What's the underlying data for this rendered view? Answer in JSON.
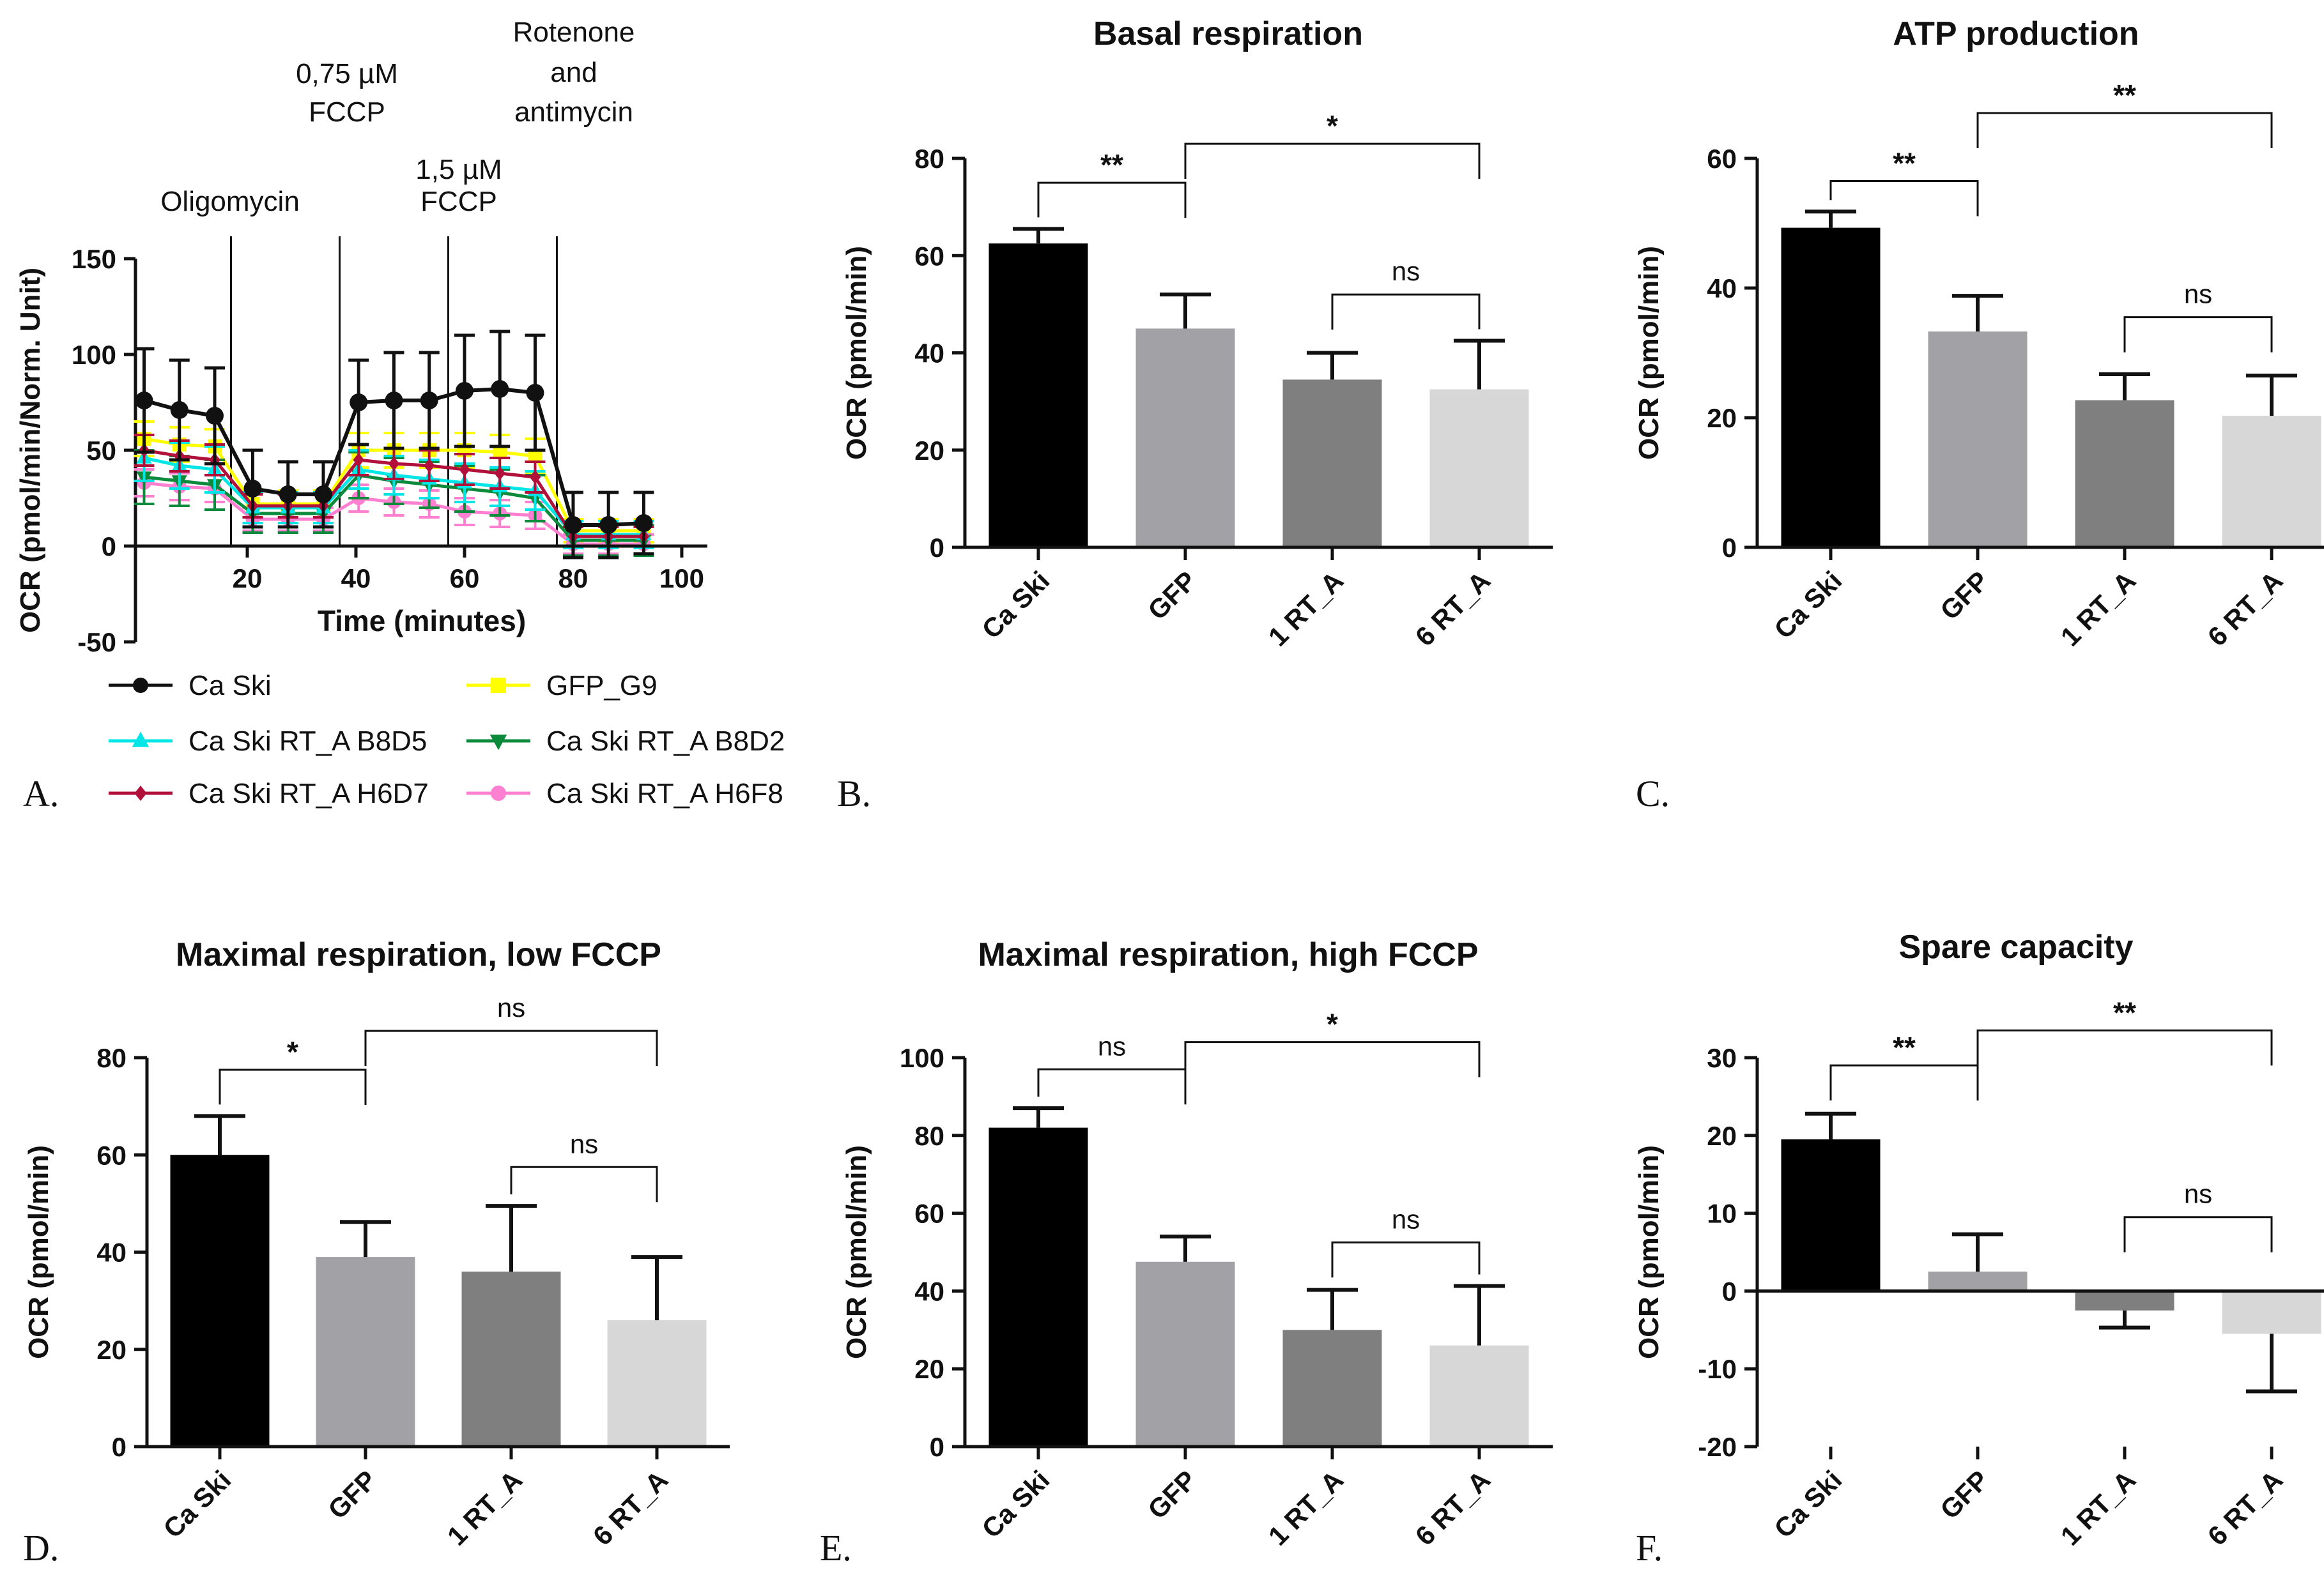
{
  "chart_data": [
    {
      "panel": "A.",
      "type": "line",
      "title": "",
      "xlabel": "Time (minutes)",
      "ylabel": "OCR (pmol/min/Norm. Unit)",
      "xlim": [
        0,
        100
      ],
      "ylim": [
        -50,
        150
      ],
      "xticks": [
        "20",
        "40",
        "60",
        "80",
        "100"
      ],
      "yticks": [
        "-50",
        "0",
        "50",
        "100",
        "150"
      ],
      "annotations": [
        {
          "text": "Oligomycin",
          "x": 17
        },
        {
          "text": "0,75 µM FCCP",
          "x": 37
        },
        {
          "text": "1,5 µM FCCP",
          "x": 57
        },
        {
          "text": "Rotenone and antimycin",
          "x": 77
        }
      ],
      "injection_lines_x": [
        17,
        37,
        57,
        77
      ],
      "x": [
        1,
        7.5,
        14,
        21,
        27.5,
        34,
        40.5,
        47,
        53.5,
        60,
        66.5,
        73,
        80,
        86.5,
        93
      ],
      "series": [
        {
          "name": "Ca Ski",
          "color": "#111111",
          "marker": "circle",
          "values": [
            76,
            71,
            68,
            30,
            27,
            27,
            75,
            76,
            76,
            81,
            82,
            80,
            11,
            11,
            12
          ],
          "errors": [
            27,
            26,
            25,
            20,
            17,
            17,
            22,
            25,
            25,
            29,
            30,
            30,
            17,
            17,
            16
          ]
        },
        {
          "name": "GFP_G9",
          "color": "#ffff00",
          "marker": "square",
          "values": [
            56,
            53,
            52,
            22,
            22,
            22,
            50,
            50,
            50,
            50,
            49,
            47,
            8,
            8,
            8
          ],
          "errors": [
            9,
            9,
            9,
            7,
            7,
            7,
            9,
            9,
            9,
            9,
            9,
            9,
            6,
            6,
            6
          ]
        },
        {
          "name": "Ca Ski RT_A B8D5",
          "color": "#00e5e5",
          "marker": "triangle-up",
          "values": [
            46,
            42,
            40,
            20,
            20,
            20,
            40,
            37,
            35,
            33,
            31,
            29,
            6,
            6,
            6
          ],
          "errors": [
            12,
            12,
            12,
            8,
            8,
            8,
            10,
            10,
            10,
            10,
            10,
            10,
            7,
            7,
            7
          ]
        },
        {
          "name": "Ca Ski RT_A B8D2",
          "color": "#0a8a3a",
          "marker": "triangle-down",
          "values": [
            36,
            34,
            32,
            17,
            17,
            17,
            37,
            34,
            32,
            30,
            28,
            25,
            3,
            3,
            3
          ],
          "errors": [
            14,
            13,
            13,
            10,
            10,
            10,
            12,
            12,
            12,
            12,
            12,
            12,
            8,
            8,
            8
          ]
        },
        {
          "name": "Ca Ski RT_A H6D7",
          "color": "#b0103a",
          "marker": "diamond",
          "values": [
            50,
            47,
            45,
            21,
            21,
            21,
            45,
            43,
            42,
            40,
            38,
            36,
            5,
            5,
            5
          ],
          "errors": [
            8,
            8,
            8,
            6,
            6,
            6,
            8,
            8,
            8,
            8,
            8,
            8,
            5,
            5,
            5
          ]
        },
        {
          "name": "Ca Ski RT_A H6F8",
          "color": "#ff80d0",
          "marker": "circle",
          "values": [
            33,
            31,
            30,
            14,
            14,
            14,
            25,
            23,
            22,
            18,
            17,
            16,
            1,
            1,
            1
          ],
          "errors": [
            7,
            7,
            7,
            6,
            6,
            6,
            7,
            7,
            7,
            7,
            7,
            7,
            5,
            5,
            5
          ]
        }
      ],
      "legend": "below"
    },
    {
      "panel": "B.",
      "type": "bar",
      "title": "Basal respiration",
      "ylabel": "OCR (pmol/min)",
      "ylim": [
        0,
        80
      ],
      "yticks": [
        "0",
        "20",
        "40",
        "60",
        "80"
      ],
      "categories": [
        "Ca Ski",
        "GFP",
        "1 RT_A",
        "6 RT_A"
      ],
      "values": [
        62.5,
        45,
        34.5,
        32.5
      ],
      "errors": [
        3,
        7,
        5.5,
        10
      ],
      "colors": [
        "#000000",
        "#a2a1a6",
        "#7f7f7f",
        "#d7d7d7"
      ],
      "significance": [
        {
          "from": 0,
          "to": 1,
          "label": "**",
          "y": 75
        },
        {
          "from": 1,
          "to": 3,
          "label": "*",
          "y": 83
        },
        {
          "from": 2,
          "to": 3,
          "label": "ns",
          "y": 52
        }
      ]
    },
    {
      "panel": "C.",
      "type": "bar",
      "title": "ATP production",
      "ylabel": "OCR (pmol/min)",
      "ylim": [
        0,
        60
      ],
      "yticks": [
        "0",
        "20",
        "40",
        "60"
      ],
      "categories": [
        "Ca Ski",
        "GFP",
        "1 RT_A",
        "6 RT_A"
      ],
      "values": [
        49.3,
        33.3,
        22.7,
        20.3
      ],
      "errors": [
        2.5,
        5.5,
        4,
        6.2
      ],
      "colors": [
        "#000000",
        "#a2a1a6",
        "#7f7f7f",
        "#d7d7d7"
      ],
      "significance": [
        {
          "from": 0,
          "to": 1,
          "label": "**",
          "y": 56.5
        },
        {
          "from": 1,
          "to": 3,
          "label": "**",
          "y": 67
        },
        {
          "from": 2,
          "to": 3,
          "label": "ns",
          "y": 35.5
        }
      ]
    },
    {
      "panel": "D.",
      "type": "bar",
      "title": "Maximal respiration, low FCCP",
      "ylabel": "OCR (pmol/min)",
      "ylim": [
        0,
        80
      ],
      "yticks": [
        "0",
        "20",
        "40",
        "60",
        "80"
      ],
      "categories": [
        "Ca Ski",
        "GFP",
        "1 RT_A",
        "6 RT_A"
      ],
      "values": [
        60,
        39,
        36,
        26
      ],
      "errors": [
        8,
        7.2,
        13.5,
        13
      ],
      "colors": [
        "#000000",
        "#a2a1a6",
        "#7f7f7f",
        "#d7d7d7"
      ],
      "significance": [
        {
          "from": 0,
          "to": 1,
          "label": "*",
          "y": 77.5
        },
        {
          "from": 1,
          "to": 3,
          "label": "ns",
          "y": 85.5
        },
        {
          "from": 2,
          "to": 3,
          "label": "ns",
          "y": 57.5
        }
      ]
    },
    {
      "panel": "E.",
      "type": "bar",
      "title": "Maximal respiration, high  FCCP",
      "ylabel": "OCR (pmol/min)",
      "ylim": [
        0,
        100
      ],
      "yticks": [
        "0",
        "20",
        "40",
        "60",
        "80",
        "100"
      ],
      "categories": [
        "Ca Ski",
        "GFP",
        "1 RT_A",
        "6 RT_A"
      ],
      "values": [
        82,
        47.5,
        30,
        26
      ],
      "errors": [
        5,
        6.5,
        10.3,
        15.3
      ],
      "colors": [
        "#000000",
        "#a2a1a6",
        "#7f7f7f",
        "#d7d7d7"
      ],
      "significance": [
        {
          "from": 0,
          "to": 1,
          "label": "ns",
          "y": 97
        },
        {
          "from": 1,
          "to": 3,
          "label": "*",
          "y": 104
        },
        {
          "from": 2,
          "to": 3,
          "label": "ns",
          "y": 52.5
        }
      ]
    },
    {
      "panel": "F.",
      "type": "bar",
      "title": "Spare capacity",
      "ylabel": "OCR (pmol/min)",
      "ylim": [
        -20,
        30
      ],
      "yticks": [
        "-20",
        "-10",
        "0",
        "10",
        "20",
        "30"
      ],
      "categories": [
        "Ca Ski",
        "GFP",
        "1 RT_A",
        "6 RT_A"
      ],
      "values": [
        19.5,
        2.5,
        -2.5,
        -5.5
      ],
      "errors": [
        3.3,
        4.8,
        2.2,
        7.4
      ],
      "colors": [
        "#000000",
        "#a2a1a6",
        "#7f7f7f",
        "#d7d7d7"
      ],
      "significance": [
        {
          "from": 0,
          "to": 1,
          "label": "**",
          "y": 29
        },
        {
          "from": 1,
          "to": 3,
          "label": "**",
          "y": 33.5
        },
        {
          "from": 2,
          "to": 3,
          "label": "ns",
          "y": 9.5
        }
      ]
    }
  ]
}
